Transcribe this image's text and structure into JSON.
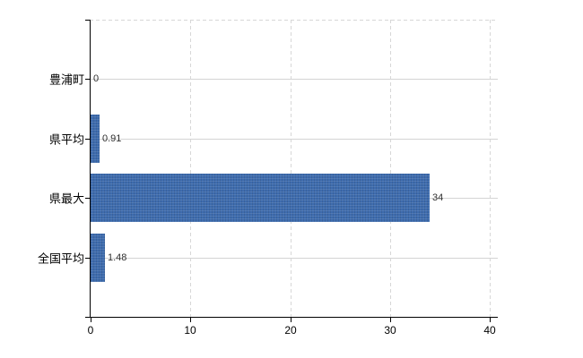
{
  "chart_data": {
    "type": "bar",
    "orientation": "horizontal",
    "categories": [
      "豊浦町",
      "県平均",
      "県最大",
      "全国平均"
    ],
    "values": [
      0,
      0.91,
      34,
      1.48
    ],
    "data_labels": [
      "0",
      "0.91",
      "34",
      "1.48"
    ],
    "x_tick_labels": [
      "0",
      "10",
      "20",
      "30",
      "40"
    ],
    "x_tick_values": [
      0,
      10,
      20,
      30,
      40
    ],
    "xlim": [
      0,
      40.9
    ],
    "grid": {
      "vertical": "dashed",
      "horizontal": "solid-at-category-centers"
    },
    "legend": "none",
    "bar_color": "#3e6cae"
  },
  "colors": {
    "bar": "#3e6cae",
    "axis": "#000000",
    "gridline": "#d4d4d4",
    "category_text": "#000000",
    "data_label_text": "#2f2f2f",
    "background": "#ffffff"
  }
}
